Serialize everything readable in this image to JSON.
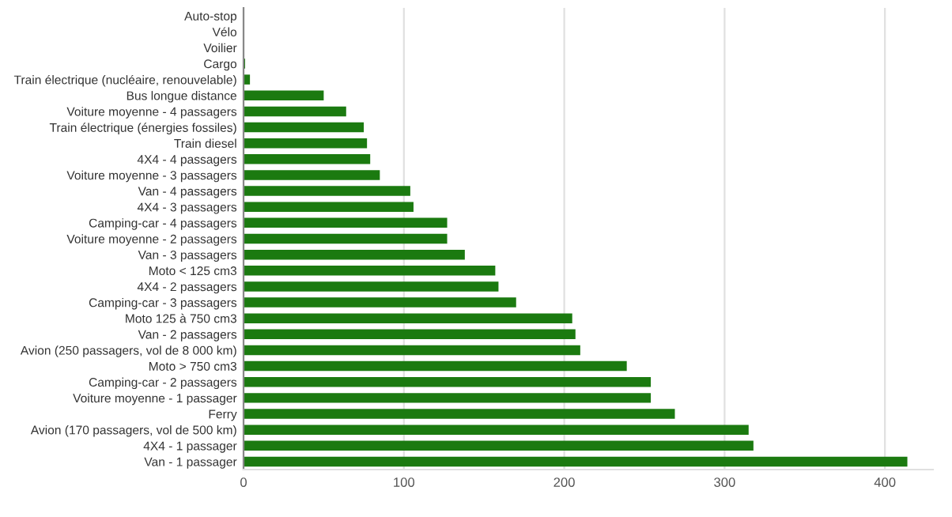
{
  "chart_data": {
    "type": "bar",
    "orientation": "horizontal",
    "categories": [
      "Auto-stop",
      "Vélo",
      "Voilier",
      "Cargo",
      "Train électrique (nucléaire, renouvelable)",
      "Bus longue distance",
      "Voiture moyenne - 4 passagers",
      "Train électrique (énergies fossiles)",
      "Train diesel",
      "4X4 - 4 passagers",
      "Voiture moyenne - 3 passagers",
      "Van - 4 passagers",
      "4X4 - 3 passagers",
      "Camping-car - 4 passagers",
      "Voiture moyenne - 2 passagers",
      "Van - 3 passagers",
      "Moto < 125 cm3",
      "4X4 - 2 passagers",
      "Camping-car - 3 passagers",
      "Moto 125 à 750 cm3",
      "Van - 2 passagers",
      "Avion (250 passagers, vol de 8 000 km)",
      "Moto > 750 cm3",
      "Camping-car - 2 passagers",
      "Voiture moyenne - 1 passager",
      "Ferry",
      "Avion (170 passagers, vol de 500 km)",
      "4X4 - 1 passager",
      "Van - 1 passager"
    ],
    "values": [
      0,
      0,
      0,
      1,
      4,
      50,
      64,
      75,
      77,
      79,
      85,
      104,
      106,
      127,
      127,
      138,
      157,
      159,
      170,
      205,
      207,
      210,
      239,
      254,
      254,
      269,
      315,
      318,
      414
    ],
    "color": "#1b7a10",
    "xlim": [
      0,
      430
    ],
    "xticks": [
      0,
      100,
      200,
      300,
      400
    ],
    "grid": "x"
  }
}
